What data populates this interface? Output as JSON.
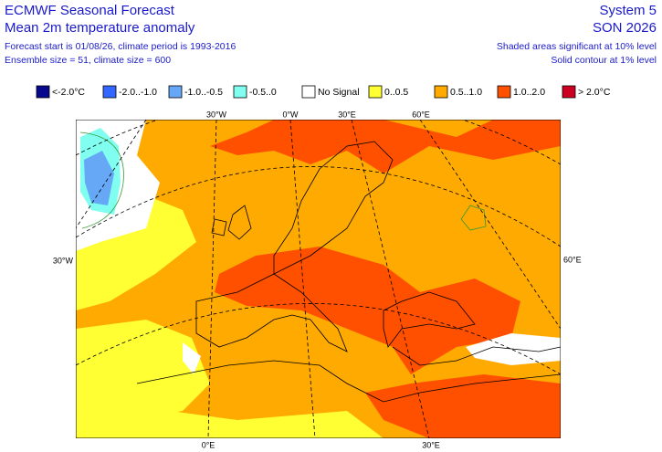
{
  "header": {
    "left": [
      "ECMWF Seasonal Forecast",
      "Mean 2m temperature anomaly",
      "Forecast start is 01/08/26, climate period is 1993-2016",
      "Ensemble size = 51, climate size = 600"
    ],
    "right": [
      "System 5",
      "SON 2026",
      "Shaded areas significant at 10% level",
      "Solid contour at 1% level"
    ]
  },
  "legend": [
    {
      "label": "<-2.0°C",
      "color": "#08088e"
    },
    {
      "label": "-2.0..-1.0",
      "color": "#3366ff"
    },
    {
      "label": "-1.0..-0.5",
      "color": "#66a8f5"
    },
    {
      "label": "-0.5..0",
      "color": "#80fff0"
    },
    {
      "label": "No Signal",
      "color": "#ffffff"
    },
    {
      "label": "0..0.5",
      "color": "#ffff33"
    },
    {
      "label": "0.5..1.0",
      "color": "#ffaa00"
    },
    {
      "label": "1.0..2.0",
      "color": "#ff5000"
    },
    {
      "label": "> 2.0°C",
      "color": "#cc0022"
    }
  ],
  "map": {
    "top_labels": [
      "30°W",
      "0°W",
      "30°E",
      "60°E"
    ],
    "left_label": "30°W",
    "right_label": "60°E",
    "bottom_labels": [
      "0°E",
      "30°E"
    ]
  }
}
